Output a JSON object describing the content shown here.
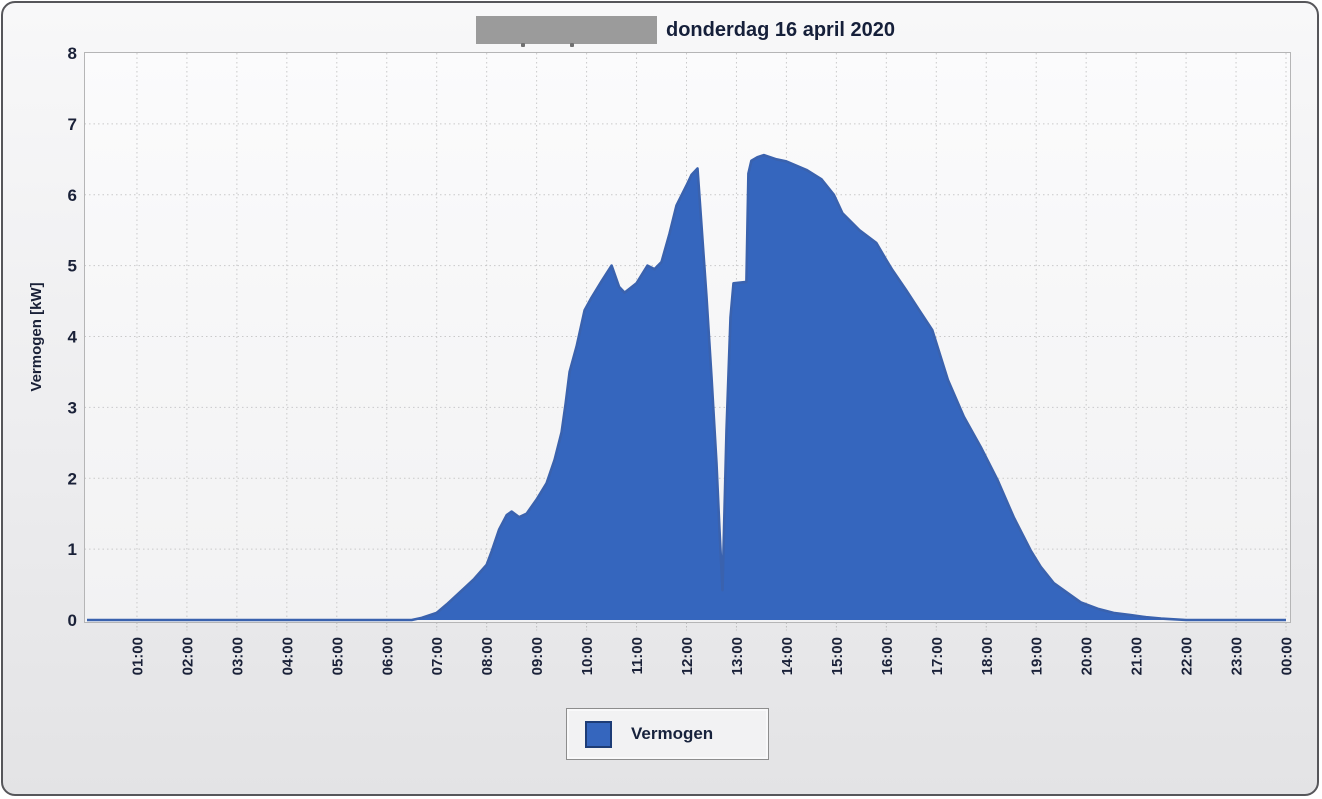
{
  "chart_data": {
    "type": "area",
    "title": "donderdag 16 april 2020",
    "title_prefix_masked": true,
    "ylabel": "Vermogen [kW]",
    "xlabel": "",
    "ylim": [
      0,
      8
    ],
    "yticks": [
      0,
      1,
      2,
      3,
      4,
      5,
      6,
      7,
      8
    ],
    "xlim_hours": [
      0,
      24
    ],
    "xtick_labels": [
      "01:00",
      "02:00",
      "03:00",
      "04:00",
      "05:00",
      "06:00",
      "07:00",
      "08:00",
      "09:00",
      "10:00",
      "11:00",
      "12:00",
      "13:00",
      "14:00",
      "15:00",
      "16:00",
      "17:00",
      "18:00",
      "19:00",
      "20:00",
      "21:00",
      "22:00",
      "23:00",
      "00:00"
    ],
    "grid": "dotted",
    "legend_position": "bottom-center",
    "series": [
      {
        "name": "Vermogen",
        "unit": "kW",
        "color": "#3566BE",
        "points": [
          [
            0,
            0
          ],
          [
            1,
            0
          ],
          [
            2,
            0
          ],
          [
            3,
            0
          ],
          [
            4,
            0
          ],
          [
            5,
            0
          ],
          [
            6,
            0
          ],
          [
            6.5,
            0
          ],
          [
            6.7,
            0.03
          ],
          [
            7,
            0.1
          ],
          [
            7.2,
            0.22
          ],
          [
            7.4,
            0.35
          ],
          [
            7.6,
            0.48
          ],
          [
            7.75,
            0.58
          ],
          [
            7.9,
            0.7
          ],
          [
            8,
            0.78
          ],
          [
            8.1,
            0.97
          ],
          [
            8.25,
            1.28
          ],
          [
            8.4,
            1.48
          ],
          [
            8.5,
            1.53
          ],
          [
            8.65,
            1.45
          ],
          [
            8.8,
            1.5
          ],
          [
            9,
            1.7
          ],
          [
            9.2,
            1.93
          ],
          [
            9.36,
            2.26
          ],
          [
            9.5,
            2.65
          ],
          [
            9.58,
            3.05
          ],
          [
            9.66,
            3.5
          ],
          [
            9.8,
            3.86
          ],
          [
            9.96,
            4.37
          ],
          [
            10.1,
            4.55
          ],
          [
            10.3,
            4.78
          ],
          [
            10.5,
            5
          ],
          [
            10.65,
            4.7
          ],
          [
            10.76,
            4.62
          ],
          [
            11,
            4.75
          ],
          [
            11.22,
            5
          ],
          [
            11.36,
            4.95
          ],
          [
            11.5,
            5.05
          ],
          [
            11.66,
            5.45
          ],
          [
            11.8,
            5.85
          ],
          [
            12,
            6.13
          ],
          [
            12.1,
            6.28
          ],
          [
            12.22,
            6.37
          ],
          [
            12.4,
            4.56
          ],
          [
            12.5,
            3.43
          ],
          [
            12.6,
            2.21
          ],
          [
            12.66,
            1.27
          ],
          [
            12.72,
            0.42
          ],
          [
            12.8,
            2.68
          ],
          [
            12.88,
            4.27
          ],
          [
            12.94,
            4.75
          ],
          [
            13.2,
            4.77
          ],
          [
            13.24,
            6.3
          ],
          [
            13.3,
            6.48
          ],
          [
            13.42,
            6.53
          ],
          [
            13.55,
            6.56
          ],
          [
            13.8,
            6.5
          ],
          [
            14,
            6.47
          ],
          [
            14.4,
            6.35
          ],
          [
            14.7,
            6.22
          ],
          [
            14.95,
            6
          ],
          [
            15.12,
            5.74
          ],
          [
            15.46,
            5.5
          ],
          [
            15.8,
            5.32
          ],
          [
            16,
            5.08
          ],
          [
            16.12,
            4.94
          ],
          [
            16.4,
            4.65
          ],
          [
            16.66,
            4.37
          ],
          [
            16.92,
            4.09
          ],
          [
            17.23,
            3.39
          ],
          [
            17.55,
            2.87
          ],
          [
            17.89,
            2.44
          ],
          [
            18.23,
            1.97
          ],
          [
            18.55,
            1.45
          ],
          [
            18.89,
            0.98
          ],
          [
            19.09,
            0.75
          ],
          [
            19.35,
            0.52
          ],
          [
            19.63,
            0.38
          ],
          [
            19.89,
            0.25
          ],
          [
            20.23,
            0.16
          ],
          [
            20.55,
            0.1
          ],
          [
            20.89,
            0.07
          ],
          [
            21.2,
            0.04
          ],
          [
            21.5,
            0.02
          ],
          [
            22,
            0
          ],
          [
            23,
            0
          ],
          [
            24,
            0
          ]
        ]
      }
    ]
  },
  "legend": {
    "label": "Vermogen",
    "swatch_color": "#3566BE"
  },
  "colors": {
    "area_fill": "#3566BE",
    "series_line": "#3A62AE",
    "zero_line": "#3C64AF",
    "grid": "#C9C9CA",
    "plot_frame": "#B5B5B6",
    "plot_bg_top": "#FBFBFC",
    "plot_bg_bottom": "#F2F2F3",
    "text_dark": "#1A2138",
    "panel_border": "#56565A",
    "redaction_gray": "#9B9B9B"
  }
}
